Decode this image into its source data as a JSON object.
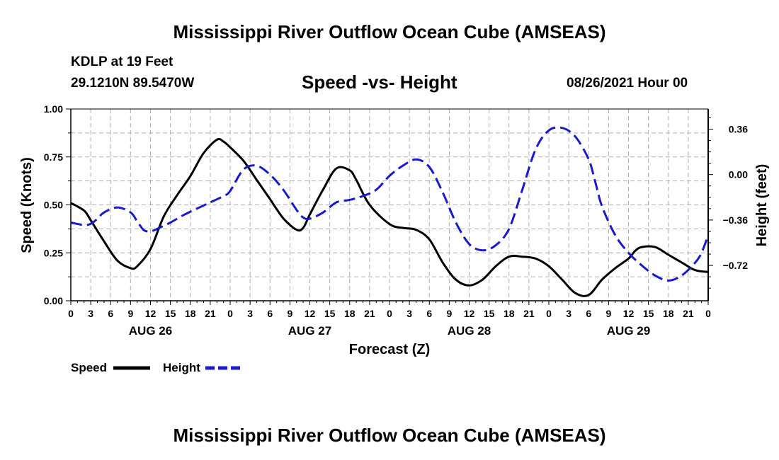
{
  "header": {
    "title": "Mississippi River Outflow Ocean Cube (AMSEAS)",
    "station": "KDLP at 19 Feet",
    "coords": "29.1210N  89.5470W",
    "subtitle": "Speed -vs- Height",
    "date": "08/26/2021 Hour 00"
  },
  "footer": {
    "title": "Mississippi River Outflow Ocean Cube (AMSEAS)"
  },
  "colors": {
    "speed": "#000000",
    "height": "#1a1acc",
    "grid": "#b0b0b0"
  },
  "chart_data": {
    "type": "line",
    "xlabel": "Forecast (Z)",
    "ylabel": "Speed (Knots)",
    "y2label": "Height (feet)",
    "xlim": [
      0,
      96
    ],
    "ylim": [
      0,
      1
    ],
    "y2lim": [
      -1.0,
      0.52
    ],
    "x_ticks": [
      0,
      3,
      6,
      9,
      12,
      15,
      18,
      21,
      24,
      27,
      30,
      33,
      36,
      39,
      42,
      45,
      48,
      51,
      54,
      57,
      60,
      63,
      66,
      69,
      72,
      75,
      78,
      81,
      84,
      87,
      90,
      93,
      96
    ],
    "x_tick_labels": [
      "0",
      "3",
      "6",
      "9",
      "12",
      "15",
      "18",
      "21",
      "0",
      "3",
      "6",
      "9",
      "12",
      "15",
      "18",
      "21",
      "0",
      "3",
      "6",
      "9",
      "12",
      "15",
      "18",
      "21",
      "0",
      "3",
      "6",
      "9",
      "12",
      "15",
      "18",
      "21",
      "0"
    ],
    "y_ticks": [
      0,
      0.25,
      0.5,
      0.75,
      1.0
    ],
    "y_tick_labels": [
      "0.00",
      "0.25",
      "0.50",
      "0.75",
      "1.00"
    ],
    "y2_ticks": [
      0.36,
      0.0,
      -0.36,
      -0.72
    ],
    "y2_tick_labels": [
      "0.36",
      "0.00",
      "−0.36",
      "−0.72"
    ],
    "day_labels": [
      {
        "x": 12,
        "label": "AUG 26"
      },
      {
        "x": 36,
        "label": "AUG 27"
      },
      {
        "x": 60,
        "label": "AUG 28"
      },
      {
        "x": 84,
        "label": "AUG 29"
      }
    ],
    "grid": true,
    "series": [
      {
        "name": "Speed",
        "axis": "left",
        "style": "solid",
        "x": [
          0,
          2,
          3,
          5,
          7,
          9,
          10,
          12,
          14,
          16,
          18,
          20,
          22,
          23,
          24,
          26,
          28,
          30,
          32,
          34,
          35,
          36,
          38,
          40,
          42,
          43,
          45,
          48,
          50,
          52,
          54,
          56,
          58,
          60,
          62,
          64,
          66,
          68,
          70,
          72,
          74,
          76,
          78,
          80,
          82,
          84,
          85,
          86,
          88,
          90,
          92,
          94,
          96
        ],
        "values": [
          0.51,
          0.47,
          0.42,
          0.31,
          0.21,
          0.17,
          0.18,
          0.27,
          0.44,
          0.55,
          0.65,
          0.77,
          0.84,
          0.83,
          0.8,
          0.73,
          0.63,
          0.53,
          0.43,
          0.37,
          0.38,
          0.45,
          0.58,
          0.69,
          0.68,
          0.63,
          0.5,
          0.4,
          0.38,
          0.37,
          0.32,
          0.2,
          0.11,
          0.08,
          0.11,
          0.18,
          0.23,
          0.23,
          0.22,
          0.18,
          0.11,
          0.04,
          0.03,
          0.11,
          0.17,
          0.22,
          0.26,
          0.28,
          0.28,
          0.24,
          0.2,
          0.16,
          0.15
        ]
      },
      {
        "name": "Height",
        "axis": "right",
        "style": "dashed",
        "x": [
          0,
          2,
          3,
          4,
          5,
          7,
          9,
          10,
          11,
          12,
          13,
          15,
          17,
          19,
          21,
          23,
          24,
          26,
          28,
          30,
          32,
          34,
          35,
          36,
          38,
          40,
          42,
          44,
          46,
          48,
          50,
          52,
          54,
          56,
          58,
          60,
          62,
          64,
          66,
          68,
          70,
          72,
          74,
          76,
          78,
          79,
          80,
          82,
          84,
          86,
          88,
          90,
          92,
          94,
          95,
          96
        ],
        "values": [
          -0.38,
          -0.4,
          -0.39,
          -0.35,
          -0.3,
          -0.26,
          -0.3,
          -0.37,
          -0.44,
          -0.45,
          -0.43,
          -0.38,
          -0.32,
          -0.27,
          -0.22,
          -0.17,
          -0.13,
          0.04,
          0.07,
          0.0,
          -0.12,
          -0.28,
          -0.34,
          -0.35,
          -0.3,
          -0.22,
          -0.2,
          -0.17,
          -0.12,
          -0.01,
          0.07,
          0.12,
          0.06,
          -0.14,
          -0.38,
          -0.55,
          -0.6,
          -0.56,
          -0.43,
          -0.12,
          0.2,
          0.35,
          0.37,
          0.3,
          0.12,
          -0.06,
          -0.25,
          -0.48,
          -0.62,
          -0.72,
          -0.8,
          -0.84,
          -0.8,
          -0.7,
          -0.62,
          -0.48
        ]
      }
    ],
    "legend": {
      "position": "bottom-left",
      "entries": [
        {
          "label": "Speed",
          "series": "Speed"
        },
        {
          "label": "Height",
          "series": "Height"
        }
      ]
    }
  }
}
